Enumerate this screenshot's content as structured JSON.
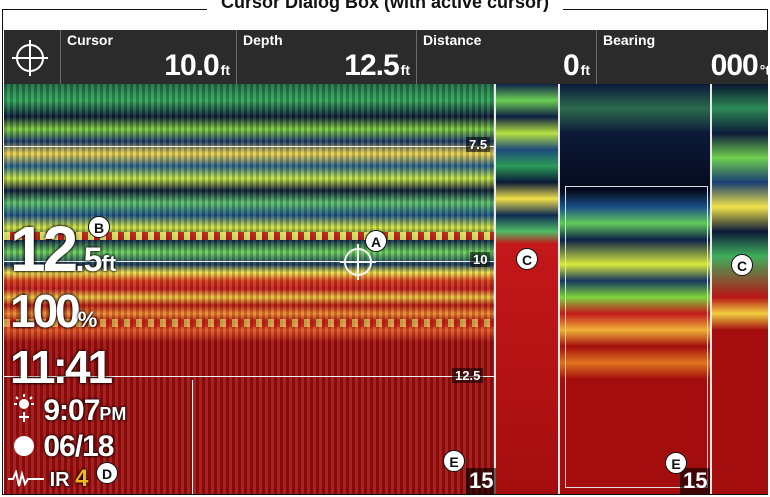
{
  "caption": "Cursor Dialog Box (with active cursor)",
  "cursor_dialog": {
    "cursor": {
      "label": "Cursor",
      "value": "10.0",
      "unit": "ft"
    },
    "depth": {
      "label": "Depth",
      "value": "12.5",
      "unit": "ft"
    },
    "distance": {
      "label": "Distance",
      "value": "0",
      "unit": "ft"
    },
    "bearing": {
      "label": "Bearing",
      "value": "000",
      "unit": "°t"
    }
  },
  "depth_scale": {
    "d1": "7.5",
    "d2": "10",
    "d3": "12.5",
    "d4": "15",
    "d5": "15"
  },
  "readouts": {
    "depth_big": "12",
    "depth_frac": ".5",
    "depth_unit": "ft",
    "percent_value": "100",
    "percent_unit": "%",
    "time": "11:41",
    "sunset_time": "9:07",
    "sunset_period": "PM",
    "date": "06/18",
    "ir_label": "IR",
    "ir_value": "4"
  },
  "callouts": {
    "a": "A",
    "b": "B",
    "c1": "C",
    "c2": "C",
    "d": "D",
    "e1": "E",
    "e2": "E"
  },
  "icons": [
    "crosshair-icon",
    "sun-icon",
    "moon-icon",
    "ir-wave-icon"
  ],
  "colors": {
    "bar_bg": "#2b2b2b",
    "ir_accent": "#f2b418",
    "red_bottom": "#a30d0d"
  }
}
